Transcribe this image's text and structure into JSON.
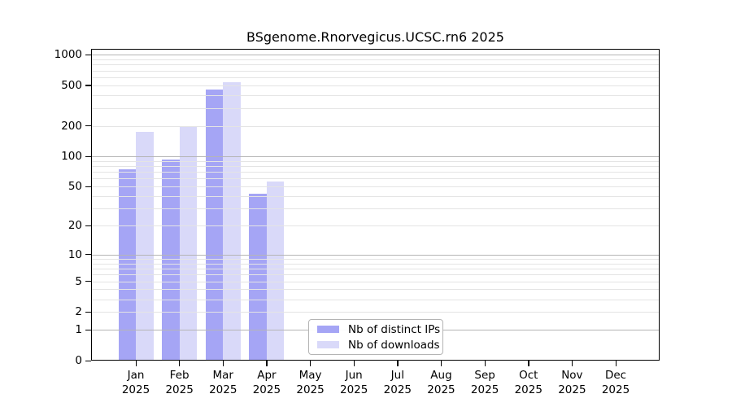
{
  "chart_data": {
    "type": "bar",
    "title": "BSgenome.Rnorvegicus.UCSC.rn6 2025",
    "categories": [
      "Jan",
      "Feb",
      "Mar",
      "Apr",
      "May",
      "Jun",
      "Jul",
      "Aug",
      "Sep",
      "Oct",
      "Nov",
      "Dec"
    ],
    "category_year": "2025",
    "series": [
      {
        "name": "Nb of distinct IPs",
        "color": "#a5a5f5",
        "values": [
          75,
          93,
          458,
          42,
          0,
          0,
          0,
          0,
          0,
          0,
          0,
          0
        ]
      },
      {
        "name": "Nb of downloads",
        "color": "#d9d9f9",
        "values": [
          173,
          200,
          540,
          56,
          0,
          0,
          0,
          0,
          0,
          0,
          0,
          0
        ]
      }
    ],
    "y_axis": {
      "scale": "log10(1+x)",
      "tick_values": [
        0,
        1,
        2,
        5,
        10,
        20,
        50,
        100,
        200,
        500,
        1000
      ],
      "major_gridline_values": [
        1,
        10,
        100,
        1000
      ],
      "minor_gridline_decades": [
        1,
        10,
        100
      ]
    },
    "x_axis": {
      "label_line2": "2025"
    },
    "grid": {
      "major_color": "#b5b5b5",
      "minor_color": "#e4e4e4"
    },
    "legend": {
      "position": "bottom-center-inside",
      "entries": [
        "Nb of distinct IPs",
        "Nb of downloads"
      ]
    },
    "colors": {
      "axis": "#000000",
      "background": "#ffffff",
      "distinct_ips": "#a5a5f5",
      "downloads": "#d9d9f9"
    }
  }
}
